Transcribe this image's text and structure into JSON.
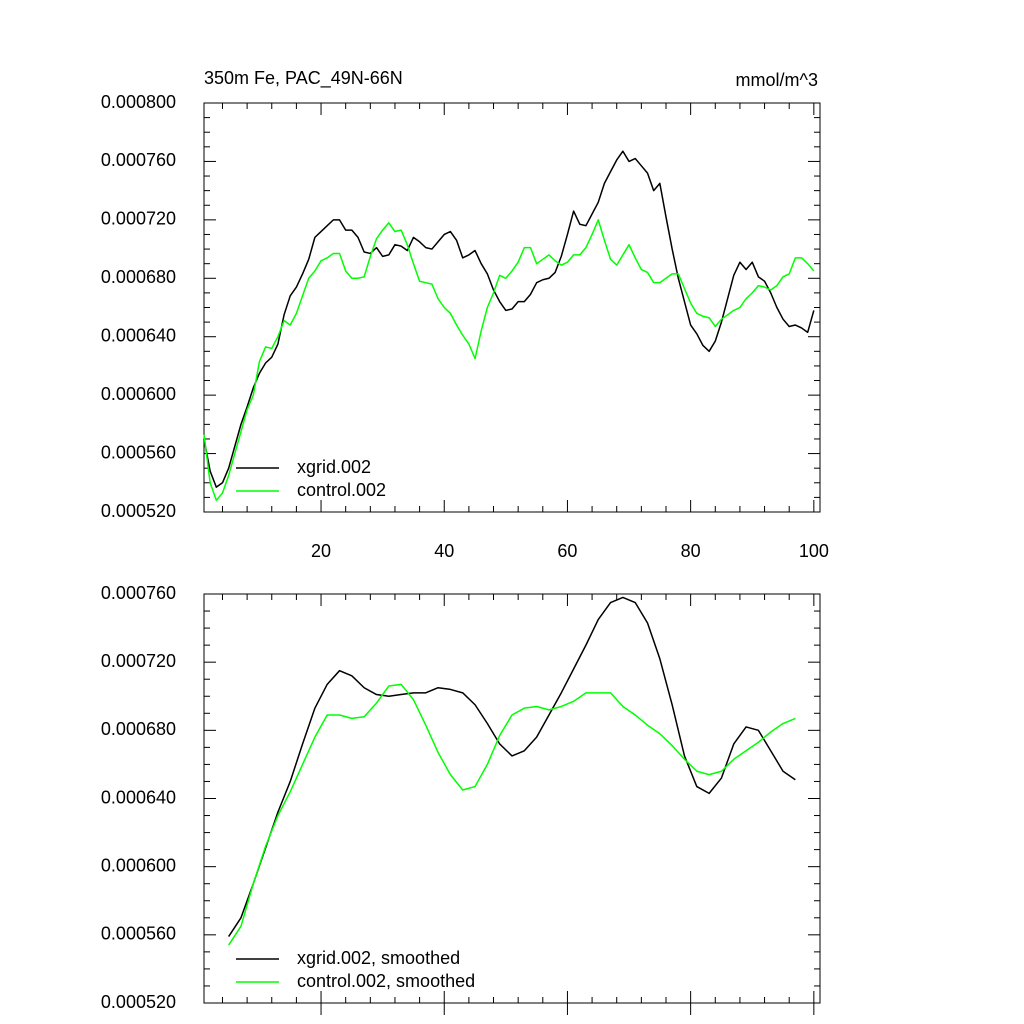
{
  "chart_data": [
    {
      "type": "line",
      "left_title": "350m Fe, PAC_49N-66N",
      "right_title": "mmol/m^3",
      "xlim": [
        1,
        101
      ],
      "xticks": [
        20,
        40,
        60,
        80,
        100
      ],
      "show_xtick_labels": true,
      "ylim": [
        0.00052,
        0.0008
      ],
      "yticks": [
        {
          "value": 0.00052,
          "label": "0.000520"
        },
        {
          "value": 0.00056,
          "label": "0.000560"
        },
        {
          "value": 0.0006,
          "label": "0.000600"
        },
        {
          "value": 0.00064,
          "label": "0.000640"
        },
        {
          "value": 0.00068,
          "label": "0.000680"
        },
        {
          "value": 0.00072,
          "label": "0.000720"
        },
        {
          "value": 0.00076,
          "label": "0.000760"
        },
        {
          "value": 0.0008,
          "label": "0.000800"
        }
      ],
      "legend": "lower left",
      "x": [
        1,
        2,
        3,
        4,
        5,
        6,
        7,
        8,
        9,
        10,
        11,
        12,
        13,
        14,
        15,
        16,
        17,
        18,
        19,
        20,
        21,
        22,
        23,
        24,
        25,
        26,
        27,
        28,
        29,
        30,
        31,
        32,
        33,
        34,
        35,
        36,
        37,
        38,
        39,
        40,
        41,
        42,
        43,
        44,
        45,
        46,
        47,
        48,
        49,
        50,
        51,
        52,
        53,
        54,
        55,
        56,
        57,
        58,
        59,
        60,
        61,
        62,
        63,
        64,
        65,
        66,
        67,
        68,
        69,
        70,
        71,
        72,
        73,
        74,
        75,
        76,
        77,
        78,
        79,
        80,
        81,
        82,
        83,
        84,
        85,
        86,
        87,
        88,
        89,
        90,
        91,
        92,
        93,
        94,
        95,
        96,
        97,
        98,
        99,
        100
      ],
      "series": [
        {
          "name": "xgrid.002",
          "color": "#000000",
          "values": [
            0.00057,
            0.000548,
            0.000537,
            0.00054,
            0.00055,
            0.000565,
            0.00058,
            0.000592,
            0.000605,
            0.000615,
            0.000622,
            0.000626,
            0.000635,
            0.000655,
            0.000668,
            0.000674,
            0.000683,
            0.000693,
            0.000708,
            0.000712,
            0.000716,
            0.00072,
            0.00072,
            0.000713,
            0.000713,
            0.000708,
            0.000698,
            0.000697,
            0.000701,
            0.000695,
            0.000696,
            0.000703,
            0.000702,
            0.000699,
            0.000708,
            0.000705,
            0.000701,
            0.0007,
            0.000705,
            0.00071,
            0.000712,
            0.000706,
            0.000694,
            0.000696,
            0.000699,
            0.00069,
            0.000683,
            0.000672,
            0.000664,
            0.000658,
            0.000659,
            0.000664,
            0.000664,
            0.000669,
            0.000677,
            0.000679,
            0.00068,
            0.000684,
            0.000695,
            0.00071,
            0.000726,
            0.000717,
            0.000716,
            0.000724,
            0.000732,
            0.000745,
            0.000753,
            0.000761,
            0.000767,
            0.00076,
            0.000762,
            0.000757,
            0.000752,
            0.00074,
            0.000745,
            0.000722,
            0.0007,
            0.00068,
            0.000664,
            0.000648,
            0.000642,
            0.000634,
            0.00063,
            0.000637,
            0.00065,
            0.000666,
            0.000682,
            0.000691,
            0.000686,
            0.000691,
            0.000681,
            0.000678,
            0.00067,
            0.00066,
            0.000652,
            0.000647,
            0.000648,
            0.000646,
            0.000643,
            0.000658
          ]
        },
        {
          "name": "control.002",
          "color": "#00ff00",
          "values": [
            0.000573,
            0.00054,
            0.000528,
            0.000533,
            0.000545,
            0.00056,
            0.000575,
            0.00059,
            0.0006,
            0.000623,
            0.000633,
            0.000632,
            0.00064,
            0.000651,
            0.000648,
            0.000656,
            0.000668,
            0.00068,
            0.000685,
            0.000692,
            0.000694,
            0.000697,
            0.000697,
            0.000685,
            0.00068,
            0.00068,
            0.000681,
            0.000695,
            0.000707,
            0.000713,
            0.000718,
            0.000712,
            0.000713,
            0.000703,
            0.00069,
            0.000678,
            0.000677,
            0.000676,
            0.000666,
            0.00066,
            0.000656,
            0.000648,
            0.000641,
            0.000635,
            0.000625,
            0.000644,
            0.00066,
            0.00067,
            0.000682,
            0.00068,
            0.000685,
            0.000691,
            0.000701,
            0.000701,
            0.00069,
            0.000693,
            0.000696,
            0.000692,
            0.000689,
            0.000691,
            0.000696,
            0.000696,
            0.000701,
            0.00071,
            0.00072,
            0.000706,
            0.000693,
            0.000689,
            0.000696,
            0.000703,
            0.000694,
            0.000686,
            0.000684,
            0.000677,
            0.000677,
            0.00068,
            0.000683,
            0.000683,
            0.000673,
            0.000663,
            0.000656,
            0.000654,
            0.000653,
            0.000647,
            0.000652,
            0.000655,
            0.000658,
            0.00066,
            0.000666,
            0.00067,
            0.000675,
            0.000674,
            0.000672,
            0.000675,
            0.000681,
            0.000683,
            0.000694,
            0.000694,
            0.00069,
            0.000685
          ]
        }
      ]
    },
    {
      "type": "line",
      "xlim": [
        1,
        101
      ],
      "xticks": [
        20,
        40,
        60,
        80,
        100
      ],
      "show_xtick_labels": false,
      "ylim": [
        0.00052,
        0.00076
      ],
      "yticks": [
        {
          "value": 0.00052,
          "label": "0.000520"
        },
        {
          "value": 0.00056,
          "label": "0.000560"
        },
        {
          "value": 0.0006,
          "label": "0.000600"
        },
        {
          "value": 0.00064,
          "label": "0.000640"
        },
        {
          "value": 0.00068,
          "label": "0.000680"
        },
        {
          "value": 0.00072,
          "label": "0.000720"
        },
        {
          "value": 0.00076,
          "label": "0.000760"
        }
      ],
      "legend": "lower left",
      "x": [
        5,
        7,
        9,
        11,
        13,
        15,
        17,
        19,
        21,
        23,
        25,
        27,
        29,
        31,
        33,
        35,
        37,
        39,
        41,
        43,
        45,
        47,
        49,
        51,
        53,
        55,
        57,
        59,
        61,
        63,
        65,
        67,
        69,
        71,
        73,
        75,
        77,
        79,
        81,
        83,
        85,
        87,
        89,
        91,
        93,
        95,
        97
      ],
      "series": [
        {
          "name": "xgrid.002, smoothed",
          "color": "#000000",
          "values": [
            0.000559,
            0.00057,
            0.00059,
            0.000611,
            0.000632,
            0.00065,
            0.000672,
            0.000693,
            0.000707,
            0.000715,
            0.000712,
            0.000705,
            0.000701,
            0.0007,
            0.000701,
            0.000702,
            0.000702,
            0.000705,
            0.000704,
            0.000702,
            0.000695,
            0.000684,
            0.000672,
            0.000665,
            0.000668,
            0.000676,
            0.000689,
            0.000702,
            0.000716,
            0.00073,
            0.000745,
            0.000755,
            0.000758,
            0.000755,
            0.000743,
            0.000722,
            0.000695,
            0.000665,
            0.000647,
            0.000643,
            0.000652,
            0.000672,
            0.000682,
            0.00068,
            0.000668,
            0.000656,
            0.000651
          ]
        },
        {
          "name": "control.002, smoothed",
          "color": "#00ff00",
          "values": [
            0.000554,
            0.000565,
            0.00059,
            0.000612,
            0.00063,
            0.000644,
            0.00066,
            0.000676,
            0.000689,
            0.000689,
            0.000687,
            0.000688,
            0.000696,
            0.000706,
            0.000707,
            0.000698,
            0.000683,
            0.000667,
            0.000654,
            0.000645,
            0.000647,
            0.00066,
            0.000677,
            0.000689,
            0.000693,
            0.000694,
            0.000692,
            0.000694,
            0.000697,
            0.000702,
            0.000702,
            0.000702,
            0.000694,
            0.000689,
            0.000683,
            0.000678,
            0.000671,
            0.000663,
            0.000656,
            0.000654,
            0.000656,
            0.000663,
            0.000668,
            0.000673,
            0.000679,
            0.000684,
            0.000687
          ]
        }
      ]
    }
  ]
}
